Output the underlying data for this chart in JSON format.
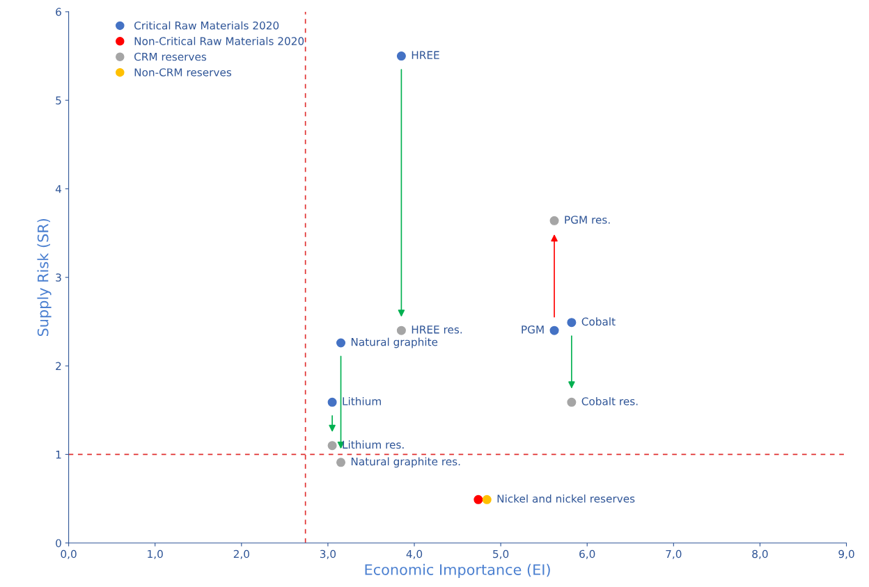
{
  "chart_data": {
    "type": "scatter",
    "xlabel": "Economic Importance (EI)",
    "ylabel": "Supply Risk (SR)",
    "xlim": [
      0,
      9
    ],
    "ylim": [
      0,
      6
    ],
    "xticks": [
      {
        "value": 0,
        "label": "0,0"
      },
      {
        "value": 1,
        "label": "1,0"
      },
      {
        "value": 2,
        "label": "2,0"
      },
      {
        "value": 3,
        "label": "3,0"
      },
      {
        "value": 4,
        "label": "4,0"
      },
      {
        "value": 5,
        "label": "5,0"
      },
      {
        "value": 6,
        "label": "6,0"
      },
      {
        "value": 7,
        "label": "7,0"
      },
      {
        "value": 8,
        "label": "8,0"
      },
      {
        "value": 9,
        "label": "9,0"
      }
    ],
    "yticks": [
      0,
      1,
      2,
      3,
      4,
      5,
      6
    ],
    "series": [
      {
        "name": "Critical Raw Materials 2020",
        "color": "#4472c4",
        "x": [
          3.85,
          3.15,
          3.05,
          5.62,
          5.82
        ],
        "values": [
          5.5,
          2.26,
          1.59,
          2.4,
          2.49
        ]
      },
      {
        "name": "Non-Critical Raw Materials 2020",
        "color": "#ff0000",
        "x": [
          4.74
        ],
        "values": [
          0.49
        ]
      },
      {
        "name": "CRM reserves",
        "color": "#a5a5a5",
        "x": [
          3.85,
          3.15,
          3.05,
          5.62,
          5.82
        ],
        "values": [
          2.4,
          0.91,
          1.1,
          3.64,
          1.59
        ]
      },
      {
        "name": "Non-CRM reserves",
        "color": "#ffc000",
        "x": [
          4.84
        ],
        "values": [
          0.49
        ]
      }
    ],
    "annotations": [
      {
        "text": "HREE",
        "x": 3.85,
        "y": 5.5
      },
      {
        "text": "Natural graphite",
        "x": 3.15,
        "y": 2.26
      },
      {
        "text": "Lithium",
        "x": 3.05,
        "y": 1.59
      },
      {
        "text": "PGM",
        "x": 5.62,
        "y": 2.4
      },
      {
        "text": "Cobalt",
        "x": 5.82,
        "y": 2.49
      },
      {
        "text": "HREE res.",
        "x": 3.85,
        "y": 2.4
      },
      {
        "text": "Natural graphite res.",
        "x": 3.15,
        "y": 0.91
      },
      {
        "text": "Lithium res.",
        "x": 3.05,
        "y": 1.1
      },
      {
        "text": "PGM res.",
        "x": 5.62,
        "y": 3.64
      },
      {
        "text": "Cobalt res.",
        "x": 5.82,
        "y": 1.59
      },
      {
        "text": "Nickel and nickel reserves",
        "x": 4.84,
        "y": 0.49
      }
    ],
    "ref_lines": [
      {
        "axis": "x",
        "value": 2.74,
        "color": "#e03030",
        "line_style": "dashed"
      },
      {
        "axis": "y",
        "value": 1,
        "color": "#e03030",
        "line_style": "dashed"
      }
    ],
    "marker": "circle",
    "grid": false,
    "legend": "top left"
  }
}
